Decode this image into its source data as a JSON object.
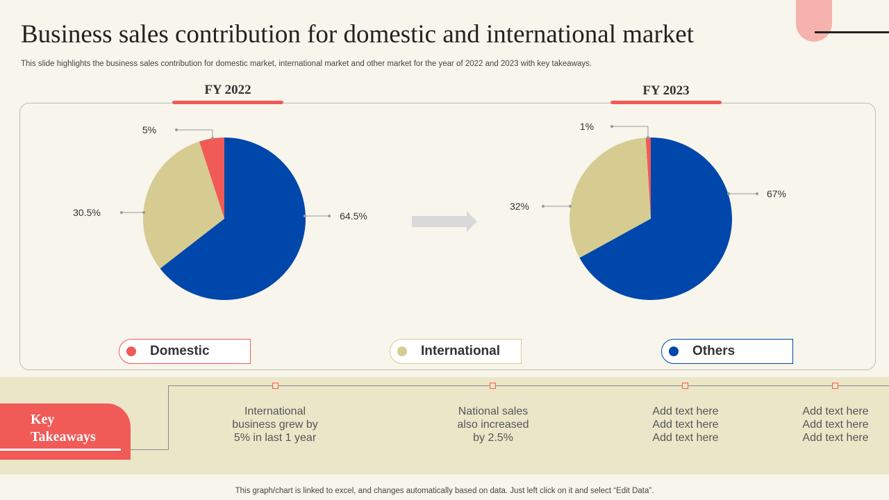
{
  "title": "Business sales contribution for domestic and international market",
  "subtitle": "This slide highlights the business sales contribution for domestic market, international market and other market for the year of 2022 and 2023 with key takeaways.",
  "chart_data": [
    {
      "type": "pie",
      "title": "FY 2022",
      "categories": [
        "Domestic",
        "International",
        "Others"
      ],
      "values": [
        5,
        30.5,
        64.5
      ],
      "labels": [
        "5%",
        "30.5%",
        "64.5%"
      ],
      "colors": [
        "#f05a57",
        "#d6cc92",
        "#0047ab"
      ]
    },
    {
      "type": "pie",
      "title": "FY 2023",
      "categories": [
        "Domestic",
        "International",
        "Others"
      ],
      "values": [
        1,
        32,
        67
      ],
      "labels": [
        "1%",
        "32%",
        "67%"
      ],
      "colors": [
        "#f05a57",
        "#d6cc92",
        "#0047ab"
      ]
    }
  ],
  "legend": [
    {
      "label": "Domestic",
      "color": "#f05a57"
    },
    {
      "label": "International",
      "color": "#d6cc92"
    },
    {
      "label": "Others",
      "color": "#0047ab"
    }
  ],
  "key_takeaways": {
    "heading": "Key\nTakeaways",
    "items": [
      "International\nbusiness grew by\n5% in last 1 year",
      "National sales\nalso increased\nby 2.5%",
      "Add text here\nAdd text here\nAdd text here",
      "Add text here\nAdd text here\nAdd text here"
    ]
  },
  "footer": "This graph/chart is linked to excel,  and changes automatically based on data. Just left click on it and select “Edit Data”."
}
